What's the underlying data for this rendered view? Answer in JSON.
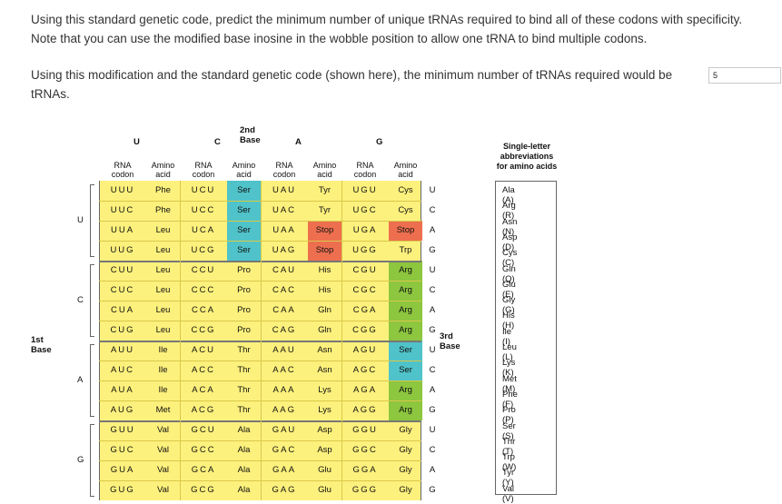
{
  "question": {
    "text1": "Using this standard genetic code, predict the minimum number of unique tRNAs required to bind all of these codons with specificity. Note that you can use the modified base inosine in the wobble position to allow one tRNA to bind multiple codons.",
    "text2": "Using this modification and the standard genetic code (shown here), the minimum number of tRNAs required would be",
    "text2_end": "tRNAs.",
    "answer_value": "5"
  },
  "table": {
    "second_base_title": "2nd Base",
    "first_base_title": "1st Base",
    "third_base_title": "3rd Base",
    "second_bases": [
      "U",
      "C",
      "A",
      "G"
    ],
    "col_rna": "RNA\ncodon",
    "col_amino": "Amino\nacid",
    "rows": [
      {
        "first": "U",
        "third": "U",
        "cells": [
          [
            "UUU",
            "Phe"
          ],
          [
            "UCU",
            "Ser"
          ],
          [
            "UAU",
            "Tyr"
          ],
          [
            "UGU",
            "Cys"
          ]
        ]
      },
      {
        "first": "U",
        "third": "C",
        "cells": [
          [
            "UUC",
            "Phe"
          ],
          [
            "UCC",
            "Ser"
          ],
          [
            "UAC",
            "Tyr"
          ],
          [
            "UGC",
            "Cys"
          ]
        ]
      },
      {
        "first": "U",
        "third": "A",
        "cells": [
          [
            "UUA",
            "Leu"
          ],
          [
            "UCA",
            "Ser"
          ],
          [
            "UAA",
            "Stop"
          ],
          [
            "UGA",
            "Stop"
          ]
        ]
      },
      {
        "first": "U",
        "third": "G",
        "cells": [
          [
            "UUG",
            "Leu"
          ],
          [
            "UCG",
            "Ser"
          ],
          [
            "UAG",
            "Stop"
          ],
          [
            "UGG",
            "Trp"
          ]
        ]
      },
      {
        "first": "C",
        "third": "U",
        "cells": [
          [
            "CUU",
            "Leu"
          ],
          [
            "CCU",
            "Pro"
          ],
          [
            "CAU",
            "His"
          ],
          [
            "CGU",
            "Arg"
          ]
        ]
      },
      {
        "first": "C",
        "third": "C",
        "cells": [
          [
            "CUC",
            "Leu"
          ],
          [
            "CCC",
            "Pro"
          ],
          [
            "CAC",
            "His"
          ],
          [
            "CGC",
            "Arg"
          ]
        ]
      },
      {
        "first": "C",
        "third": "A",
        "cells": [
          [
            "CUA",
            "Leu"
          ],
          [
            "CCA",
            "Pro"
          ],
          [
            "CAA",
            "Gln"
          ],
          [
            "CGA",
            "Arg"
          ]
        ]
      },
      {
        "first": "C",
        "third": "G",
        "cells": [
          [
            "CUG",
            "Leu"
          ],
          [
            "CCG",
            "Pro"
          ],
          [
            "CAG",
            "Gln"
          ],
          [
            "CGG",
            "Arg"
          ]
        ]
      },
      {
        "first": "A",
        "third": "U",
        "cells": [
          [
            "AUU",
            "Ile"
          ],
          [
            "ACU",
            "Thr"
          ],
          [
            "AAU",
            "Asn"
          ],
          [
            "AGU",
            "Ser"
          ]
        ]
      },
      {
        "first": "A",
        "third": "C",
        "cells": [
          [
            "AUC",
            "Ile"
          ],
          [
            "ACC",
            "Thr"
          ],
          [
            "AAC",
            "Asn"
          ],
          [
            "AGC",
            "Ser"
          ]
        ]
      },
      {
        "first": "A",
        "third": "A",
        "cells": [
          [
            "AUA",
            "Ile"
          ],
          [
            "ACA",
            "Thr"
          ],
          [
            "AAA",
            "Lys"
          ],
          [
            "AGA",
            "Arg"
          ]
        ]
      },
      {
        "first": "A",
        "third": "G",
        "cells": [
          [
            "AUG",
            "Met"
          ],
          [
            "ACG",
            "Thr"
          ],
          [
            "AAG",
            "Lys"
          ],
          [
            "AGG",
            "Arg"
          ]
        ]
      },
      {
        "first": "G",
        "third": "U",
        "cells": [
          [
            "GUU",
            "Val"
          ],
          [
            "GCU",
            "Ala"
          ],
          [
            "GAU",
            "Asp"
          ],
          [
            "GGU",
            "Gly"
          ]
        ]
      },
      {
        "first": "G",
        "third": "C",
        "cells": [
          [
            "GUC",
            "Val"
          ],
          [
            "GCC",
            "Ala"
          ],
          [
            "GAC",
            "Asp"
          ],
          [
            "GGC",
            "Gly"
          ]
        ]
      },
      {
        "first": "G",
        "third": "A",
        "cells": [
          [
            "GUA",
            "Val"
          ],
          [
            "GCA",
            "Ala"
          ],
          [
            "GAA",
            "Glu"
          ],
          [
            "GGA",
            "Gly"
          ]
        ]
      },
      {
        "first": "G",
        "third": "G",
        "cells": [
          [
            "GUG",
            "Val"
          ],
          [
            "GCG",
            "Ala"
          ],
          [
            "GAG",
            "Glu"
          ],
          [
            "GGG",
            "Gly"
          ]
        ]
      }
    ],
    "highlights": {
      "Ser": "#4fc3c9",
      "Stop": "#ee6f4f",
      "Arg": "#8dc63f"
    }
  },
  "abbreviations": {
    "title": "Single-letter abbreviations for amino acids",
    "title_lines": [
      "Single-letter",
      "abbreviations",
      "for amino acids"
    ],
    "items": [
      "Ala (A)",
      "Arg (R)",
      "Asn (N)",
      "Asp (D)",
      "Cys (C)",
      "Gln (Q)",
      "Glu (E)",
      "Gly (G)",
      "His (H)",
      "Ile (I)",
      "Leu (L)",
      "Lys (K)",
      "Met (M)",
      "Phe (F)",
      "Pro (P)",
      "Ser (S)",
      "Thr (T)",
      "Trp (W)",
      "Tyr (Y)",
      "Val (V)"
    ]
  }
}
